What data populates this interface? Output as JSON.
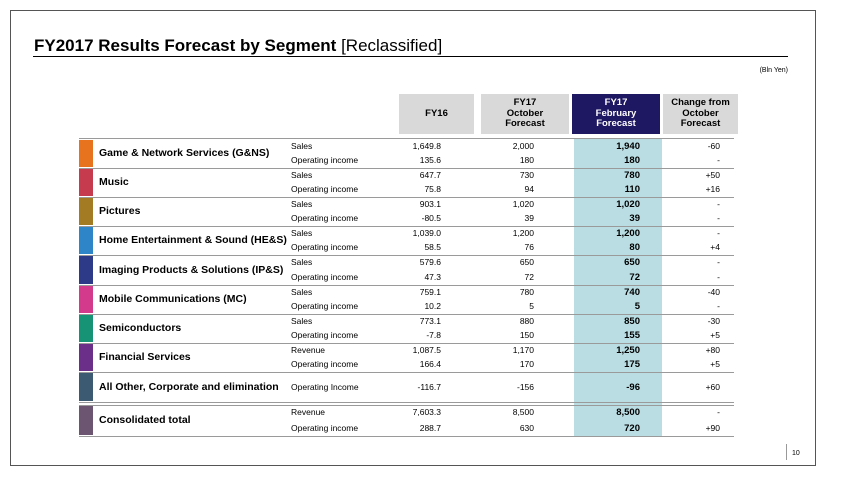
{
  "title": "FY2017 Results Forecast by Segment",
  "title_sub": "[Reclassified]",
  "unit": "(Bln Yen)",
  "page_number": "10",
  "headers": {
    "fy16": "FY16",
    "oct": [
      "FY17",
      "October",
      "Forecast"
    ],
    "feb": [
      "FY17",
      "February",
      "Forecast"
    ],
    "chg": [
      "Change from",
      "October",
      "Forecast"
    ]
  },
  "segments": [
    {
      "name": "Game & Network Services (G&NS)",
      "color": "#e8731f",
      "lines": [
        {
          "label": "Sales",
          "fy16": "1,649.8",
          "oct": "2,000",
          "feb": "1,940",
          "chg": "-60"
        },
        {
          "label": "Operating income",
          "fy16": "135.6",
          "oct": "180",
          "feb": "180",
          "chg": "-"
        }
      ]
    },
    {
      "name": "Music",
      "color": "#c63b4e",
      "lines": [
        {
          "label": "Sales",
          "fy16": "647.7",
          "oct": "730",
          "feb": "780",
          "chg": "+50"
        },
        {
          "label": "Operating income",
          "fy16": "75.8",
          "oct": "94",
          "feb": "110",
          "chg": "+16"
        }
      ]
    },
    {
      "name": "Pictures",
      "color": "#a27b22",
      "lines": [
        {
          "label": "Sales",
          "fy16": "903.1",
          "oct": "1,020",
          "feb": "1,020",
          "chg": "-"
        },
        {
          "label": "Operating income",
          "fy16": "-80.5",
          "oct": "39",
          "feb": "39",
          "chg": "-"
        }
      ]
    },
    {
      "name": "Home Entertainment & Sound (HE&S)",
      "color": "#2e86c8",
      "lines": [
        {
          "label": "Sales",
          "fy16": "1,039.0",
          "oct": "1,200",
          "feb": "1,200",
          "chg": "-"
        },
        {
          "label": "Operating income",
          "fy16": "58.5",
          "oct": "76",
          "feb": "80",
          "chg": "+4"
        }
      ]
    },
    {
      "name": "Imaging Products & Solutions (IP&S)",
      "color": "#2d3a87",
      "lines": [
        {
          "label": "Sales",
          "fy16": "579.6",
          "oct": "650",
          "feb": "650",
          "chg": "-"
        },
        {
          "label": "Operating income",
          "fy16": "47.3",
          "oct": "72",
          "feb": "72",
          "chg": "-"
        }
      ]
    },
    {
      "name": "Mobile Communications (MC)",
      "color": "#d33a8c",
      "lines": [
        {
          "label": "Sales",
          "fy16": "759.1",
          "oct": "780",
          "feb": "740",
          "chg": "-40"
        },
        {
          "label": "Operating income",
          "fy16": "10.2",
          "oct": "5",
          "feb": "5",
          "chg": "-"
        }
      ]
    },
    {
      "name": "Semiconductors",
      "color": "#169374",
      "lines": [
        {
          "label": "Sales",
          "fy16": "773.1",
          "oct": "880",
          "feb": "850",
          "chg": "-30"
        },
        {
          "label": "Operating income",
          "fy16": "-7.8",
          "oct": "150",
          "feb": "155",
          "chg": "+5"
        }
      ]
    },
    {
      "name": "Financial Services",
      "color": "#6b2f8a",
      "lines": [
        {
          "label": "Revenue",
          "fy16": "1,087.5",
          "oct": "1,170",
          "feb": "1,250",
          "chg": "+80"
        },
        {
          "label": "Operating income",
          "fy16": "166.4",
          "oct": "170",
          "feb": "175",
          "chg": "+5"
        }
      ]
    },
    {
      "name": "All Other, Corporate and elimination",
      "color": "#3d5a73",
      "lines": [
        {
          "label": "Operating Income",
          "fy16": "-116.7",
          "oct": "-156",
          "feb": "-96",
          "chg": "+60"
        }
      ]
    },
    {
      "name": "Consolidated total",
      "color": "#6b5570",
      "lines": [
        {
          "label": "Revenue",
          "fy16": "7,603.3",
          "oct": "8,500",
          "feb": "8,500",
          "chg": "-"
        },
        {
          "label": "Operating income",
          "fy16": "288.7",
          "oct": "630",
          "feb": "720",
          "chg": "+90"
        }
      ]
    }
  ]
}
